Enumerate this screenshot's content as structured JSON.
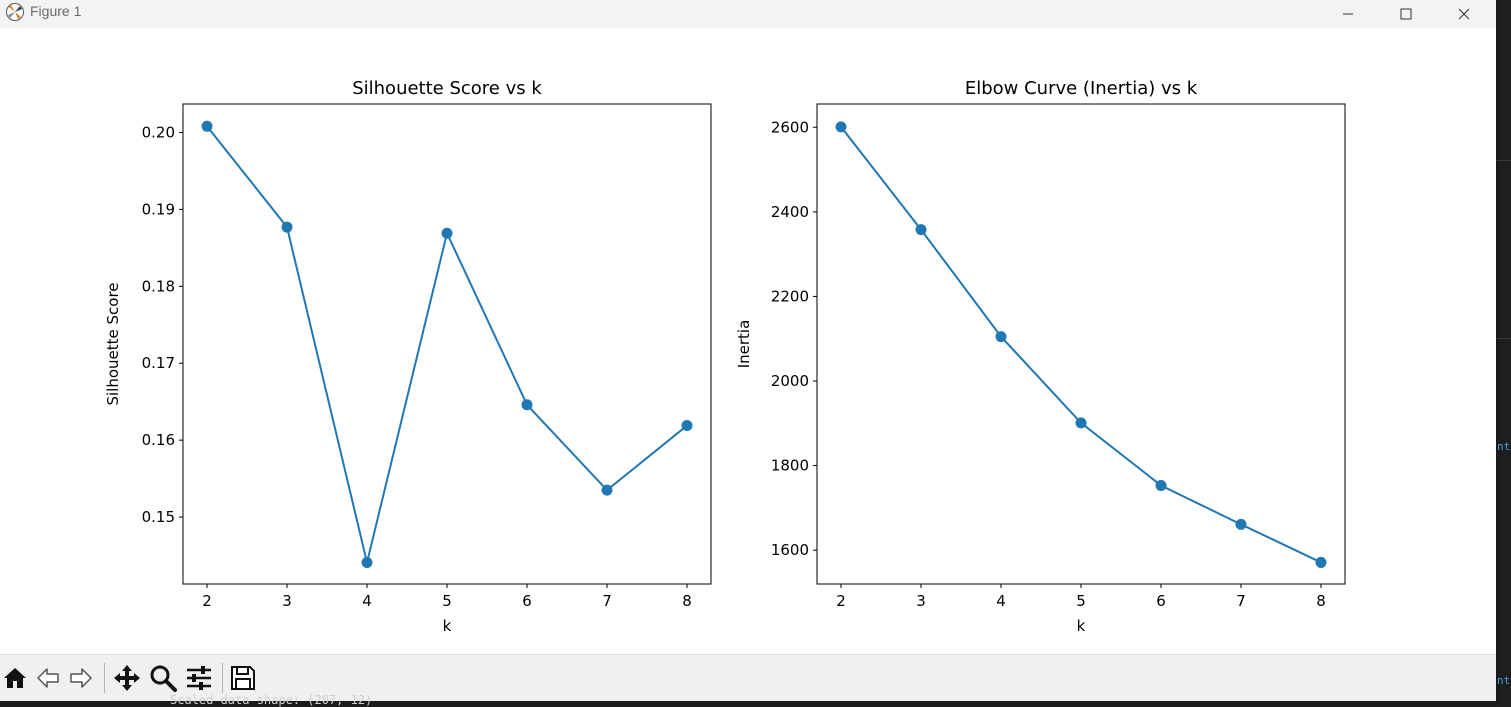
{
  "window": {
    "title": "Figure 1",
    "controls": {
      "minimize": "minimize-icon",
      "maximize": "maximize-icon",
      "close": "close-icon"
    }
  },
  "colors": {
    "series": "#1f77b4",
    "axes": "#000000",
    "toolbar_bg": "#f0f0f0",
    "titlebar_bg": "#f3f3f3"
  },
  "toolbar": {
    "buttons": [
      {
        "name": "home-button",
        "icon": "home-icon"
      },
      {
        "name": "back-button",
        "icon": "back-arrow-icon"
      },
      {
        "name": "forward-button",
        "icon": "forward-arrow-icon"
      },
      {
        "name": "pan-button",
        "icon": "pan-move-icon"
      },
      {
        "name": "zoom-button",
        "icon": "zoom-magnifier-icon"
      },
      {
        "name": "configure-subplots-button",
        "icon": "sliders-icon"
      },
      {
        "name": "save-button",
        "icon": "save-floppy-icon"
      }
    ]
  },
  "background_terminal": {
    "bottom_text": "Scaled data shape: (207, 12)",
    "side_text_1": "nt",
    "side_text_2": "nt"
  },
  "chart_data": [
    {
      "type": "line",
      "marker": "o",
      "title": "Silhouette Score vs k",
      "xlabel": "k",
      "ylabel": "Silhouette Score",
      "x": [
        2,
        3,
        4,
        5,
        6,
        7,
        8
      ],
      "y": [
        0.2008,
        0.1877,
        0.1441,
        0.1869,
        0.1646,
        0.1535,
        0.1619
      ],
      "xlim": [
        1.7,
        8.3
      ],
      "ylim": [
        0.1413,
        0.2037
      ],
      "xticks": [
        2,
        3,
        4,
        5,
        6,
        7,
        8
      ],
      "xtick_labels": [
        "2",
        "3",
        "4",
        "5",
        "6",
        "7",
        "8"
      ],
      "yticks": [
        0.15,
        0.16,
        0.17,
        0.18,
        0.19,
        0.2
      ],
      "ytick_labels": [
        "0.15",
        "0.16",
        "0.17",
        "0.18",
        "0.19",
        "0.20"
      ],
      "grid": false,
      "legend": "none"
    },
    {
      "type": "line",
      "marker": "o",
      "title": "Elbow Curve (Inertia) vs k",
      "xlabel": "k",
      "ylabel": "Inertia",
      "x": [
        2,
        3,
        4,
        5,
        6,
        7,
        8
      ],
      "y": [
        2601,
        2358,
        2105,
        1901,
        1753,
        1661,
        1571
      ],
      "xlim": [
        1.7,
        8.3
      ],
      "ylim": [
        1520,
        2655
      ],
      "xticks": [
        2,
        3,
        4,
        5,
        6,
        7,
        8
      ],
      "xtick_labels": [
        "2",
        "3",
        "4",
        "5",
        "6",
        "7",
        "8"
      ],
      "yticks": [
        1600,
        1800,
        2000,
        2200,
        2400,
        2600
      ],
      "ytick_labels": [
        "1600",
        "1800",
        "2000",
        "2200",
        "2400",
        "2600"
      ],
      "grid": false,
      "legend": "none"
    }
  ]
}
